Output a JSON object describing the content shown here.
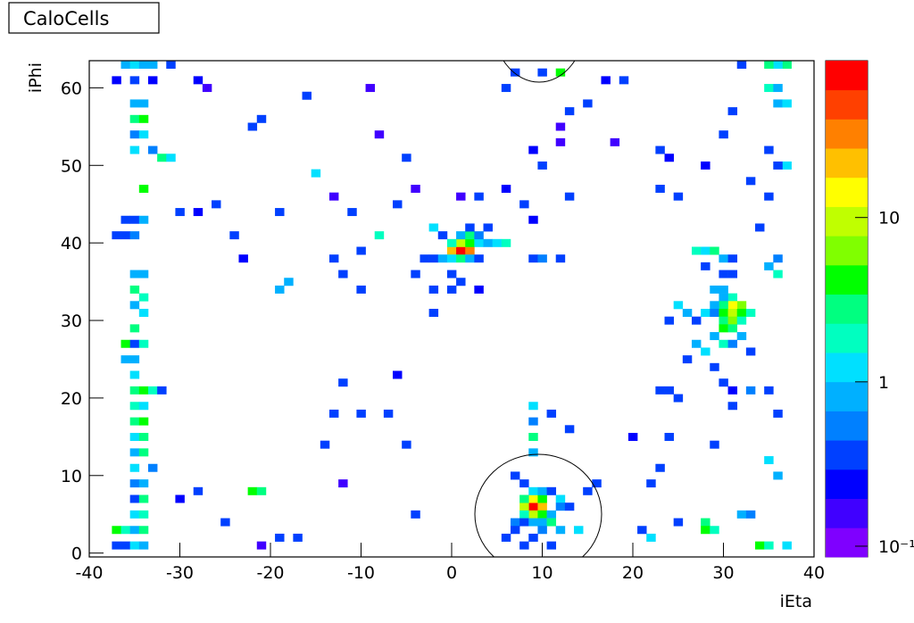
{
  "chart_data": {
    "type": "heatmap",
    "title": "CaloCells",
    "x_label": "iEta",
    "y_label": "iPhi",
    "xlim": [
      -40,
      40
    ],
    "ylim": [
      -0.5,
      63.5
    ],
    "xticks": [
      -40,
      -30,
      -20,
      -10,
      0,
      10,
      20,
      30,
      40
    ],
    "yticks": [
      0,
      10,
      20,
      30,
      40,
      50,
      60
    ],
    "zlim": [
      0.086,
      90
    ],
    "zscale": "log",
    "zticks": [
      {
        "value": 0.1,
        "label": "10⁻¹"
      },
      1,
      10
    ],
    "colormap": [
      "#7f00ff",
      "#4000ff",
      "#0000ff",
      "#0040ff",
      "#0080ff",
      "#00b0ff",
      "#00e0ff",
      "#00ffc0",
      "#00ff80",
      "#00ff00",
      "#80ff00",
      "#c0ff00",
      "#ffff00",
      "#ffc000",
      "#ff8000",
      "#ff4000",
      "#ff0000"
    ],
    "cells": [
      [
        -36,
        63,
        1
      ],
      [
        -35,
        63,
        1.2
      ],
      [
        -34,
        63,
        0.9
      ],
      [
        -33,
        63,
        1
      ],
      [
        -31,
        63,
        0.3
      ],
      [
        -37,
        61,
        0.2
      ],
      [
        -35,
        61,
        0.3
      ],
      [
        -33,
        61,
        0.2
      ],
      [
        -35,
        58,
        1
      ],
      [
        -34,
        58,
        0.8
      ],
      [
        -35,
        56,
        3
      ],
      [
        -34,
        56,
        4
      ],
      [
        -35,
        54,
        0.5
      ],
      [
        -34,
        54,
        1.5
      ],
      [
        -35,
        52,
        1.2
      ],
      [
        -33,
        52,
        0.6
      ],
      [
        -32,
        51,
        3
      ],
      [
        -31,
        51,
        1.4
      ],
      [
        -34,
        47,
        4
      ],
      [
        -36,
        43,
        0.3
      ],
      [
        -35,
        43,
        0.4
      ],
      [
        -34,
        43,
        1
      ],
      [
        -37,
        41,
        0.3
      ],
      [
        -36,
        41,
        0.4
      ],
      [
        -35,
        41,
        0.5
      ],
      [
        -35,
        36,
        1
      ],
      [
        -34,
        36,
        0.7
      ],
      [
        -35,
        34,
        3
      ],
      [
        -34,
        33,
        2
      ],
      [
        -35,
        32,
        0.8
      ],
      [
        -34,
        31,
        1.5
      ],
      [
        -35,
        29,
        3
      ],
      [
        -36,
        27,
        5
      ],
      [
        -35,
        27,
        0.3
      ],
      [
        -34,
        27,
        2
      ],
      [
        -36,
        25,
        1
      ],
      [
        -35,
        25,
        0.8
      ],
      [
        -35,
        23,
        1.5
      ],
      [
        -35,
        21,
        3
      ],
      [
        -34,
        21,
        4
      ],
      [
        -33,
        21,
        2
      ],
      [
        -32,
        21,
        0.3
      ],
      [
        -35,
        19,
        2
      ],
      [
        -34,
        19,
        1.2
      ],
      [
        -35,
        17,
        3
      ],
      [
        -34,
        17,
        4
      ],
      [
        -35,
        15,
        1.5
      ],
      [
        -34,
        15,
        3
      ],
      [
        -35,
        13,
        1
      ],
      [
        -34,
        13,
        3
      ],
      [
        -35,
        11,
        1.5
      ],
      [
        -33,
        11,
        0.5
      ],
      [
        -35,
        9,
        0.5
      ],
      [
        -34,
        9,
        1
      ],
      [
        -35,
        7,
        0.3
      ],
      [
        -34,
        7,
        3
      ],
      [
        -35,
        5,
        1.4
      ],
      [
        -34,
        5,
        2
      ],
      [
        -37,
        3,
        4
      ],
      [
        -36,
        3,
        2
      ],
      [
        -35,
        3,
        1
      ],
      [
        -34,
        3,
        3
      ],
      [
        -37,
        1,
        0.3
      ],
      [
        -36,
        1,
        0.4
      ],
      [
        -35,
        1,
        1.5
      ],
      [
        -34,
        1,
        1
      ],
      [
        -27,
        60,
        0.15
      ],
      [
        -28,
        61,
        0.2
      ],
      [
        -21,
        56,
        0.3
      ],
      [
        -22,
        55,
        0.3
      ],
      [
        -19,
        44,
        0.3
      ],
      [
        -24,
        41,
        0.4
      ],
      [
        -23,
        38,
        0.2
      ],
      [
        -26,
        45,
        0.3
      ],
      [
        -30,
        44,
        0.4
      ],
      [
        -28,
        44,
        0.2
      ],
      [
        -22,
        8,
        4
      ],
      [
        -21,
        8,
        3
      ],
      [
        -28,
        8,
        0.3
      ],
      [
        -30,
        7,
        0.2
      ],
      [
        -25,
        4,
        0.3
      ],
      [
        -21,
        1,
        0.15
      ],
      [
        -19,
        2,
        0.3
      ],
      [
        -17,
        2,
        0.3
      ],
      [
        -16,
        59,
        0.3
      ],
      [
        -15,
        49,
        1.4
      ],
      [
        -13,
        46,
        0.15
      ],
      [
        -13,
        38,
        0.4
      ],
      [
        -12,
        36,
        0.3
      ],
      [
        -10,
        39,
        0.4
      ],
      [
        -11,
        44,
        0.3
      ],
      [
        -18,
        35,
        1
      ],
      [
        -19,
        34,
        0.8
      ],
      [
        -12,
        9,
        0.15
      ],
      [
        -14,
        14,
        0.3
      ],
      [
        -13,
        18,
        0.3
      ],
      [
        -10,
        18,
        0.3
      ],
      [
        -7,
        18,
        0.3
      ],
      [
        -5,
        14,
        0.3
      ],
      [
        -4,
        5,
        0.3
      ],
      [
        -6,
        23,
        0.2
      ],
      [
        -12,
        22,
        0.3
      ],
      [
        -4,
        36,
        0.4
      ],
      [
        -3,
        38,
        0.3
      ],
      [
        -8,
        54,
        0.15
      ],
      [
        -5,
        51,
        0.3
      ],
      [
        -4,
        47,
        0.15
      ],
      [
        -10,
        34,
        0.3
      ],
      [
        -9,
        60,
        0.15
      ],
      [
        -8,
        41,
        2
      ],
      [
        -6,
        45,
        0.3
      ],
      [
        0,
        39,
        20
      ],
      [
        1,
        39,
        70
      ],
      [
        2,
        39,
        30
      ],
      [
        1,
        40,
        10
      ],
      [
        2,
        40,
        5
      ],
      [
        0,
        40,
        2
      ],
      [
        3,
        40,
        1.5
      ],
      [
        1,
        41,
        1
      ],
      [
        2,
        41,
        3
      ],
      [
        3,
        41,
        0.5
      ],
      [
        -2,
        38,
        0.4
      ],
      [
        -1,
        38,
        0.8
      ],
      [
        0,
        38,
        1.5
      ],
      [
        1,
        38,
        3
      ],
      [
        2,
        38,
        1
      ],
      [
        3,
        38,
        0.3
      ],
      [
        4,
        40,
        1
      ],
      [
        5,
        40,
        1.5
      ],
      [
        6,
        40,
        2
      ],
      [
        4,
        42,
        0.3
      ],
      [
        2,
        42,
        0.3
      ],
      [
        -1,
        41,
        0.3
      ],
      [
        0,
        36,
        0.3
      ],
      [
        1,
        35,
        0.3
      ],
      [
        -2,
        34,
        0.4
      ],
      [
        0,
        34,
        0.3
      ],
      [
        3,
        34,
        0.2
      ],
      [
        -2,
        31,
        0.3
      ],
      [
        1,
        46,
        0.15
      ],
      [
        3,
        46,
        0.3
      ],
      [
        6,
        47,
        0.2
      ],
      [
        8,
        45,
        0.3
      ],
      [
        9,
        43,
        0.2
      ],
      [
        -2,
        42,
        1.5
      ],
      [
        9,
        6,
        80
      ],
      [
        10,
        6,
        20
      ],
      [
        8,
        6,
        10
      ],
      [
        9,
        7,
        15
      ],
      [
        10,
        7,
        5
      ],
      [
        8,
        7,
        3
      ],
      [
        9,
        5,
        10
      ],
      [
        10,
        5,
        4
      ],
      [
        8,
        5,
        2
      ],
      [
        11,
        5,
        1
      ],
      [
        7,
        4,
        0.5
      ],
      [
        8,
        4,
        0.4
      ],
      [
        9,
        4,
        1
      ],
      [
        10,
        4,
        0.8
      ],
      [
        11,
        4,
        3
      ],
      [
        9,
        8,
        1.5
      ],
      [
        10,
        8,
        0.8
      ],
      [
        8,
        9,
        0.4
      ],
      [
        11,
        8,
        0.3
      ],
      [
        12,
        7,
        1.5
      ],
      [
        12,
        6,
        0.5
      ],
      [
        13,
        6,
        0.3
      ],
      [
        7,
        3,
        0.3
      ],
      [
        10,
        3,
        0.5
      ],
      [
        12,
        3,
        1
      ],
      [
        14,
        3,
        1.2
      ],
      [
        9,
        2,
        0.3
      ],
      [
        8,
        1,
        0.3
      ],
      [
        11,
        1,
        0.3
      ],
      [
        9,
        15,
        3
      ],
      [
        9,
        13,
        1
      ],
      [
        9,
        17,
        0.5
      ],
      [
        9,
        19,
        1.5
      ],
      [
        11,
        18,
        0.3
      ],
      [
        13,
        16,
        0.3
      ],
      [
        15,
        8,
        0.3
      ],
      [
        16,
        9,
        0.3
      ],
      [
        6,
        2,
        0.3
      ],
      [
        7,
        10,
        0.3
      ],
      [
        7,
        62,
        0.3
      ],
      [
        10,
        62,
        0.3
      ],
      [
        12,
        62,
        4
      ],
      [
        6,
        60,
        0.3
      ],
      [
        13,
        57,
        0.3
      ],
      [
        12,
        55,
        0.15
      ],
      [
        15,
        58,
        0.3
      ],
      [
        17,
        61,
        0.2
      ],
      [
        19,
        61,
        0.3
      ],
      [
        18,
        53,
        0.15
      ],
      [
        12,
        53,
        0.15
      ],
      [
        9,
        52,
        0.2
      ],
      [
        10,
        50,
        0.3
      ],
      [
        13,
        46,
        0.3
      ],
      [
        12,
        38,
        0.3
      ],
      [
        9,
        38,
        0.4
      ],
      [
        10,
        38,
        0.5
      ],
      [
        27,
        39,
        2
      ],
      [
        28,
        39,
        1.5
      ],
      [
        29,
        39,
        3
      ],
      [
        30,
        38,
        1
      ],
      [
        31,
        38,
        0.3
      ],
      [
        28,
        37,
        0.4
      ],
      [
        30,
        36,
        0.3
      ],
      [
        31,
        36,
        0.4
      ],
      [
        29,
        34,
        1
      ],
      [
        30,
        34,
        0.8
      ],
      [
        31,
        33,
        2
      ],
      [
        30,
        33,
        1
      ],
      [
        32,
        32,
        6
      ],
      [
        31,
        32,
        15
      ],
      [
        30,
        32,
        3
      ],
      [
        29,
        32,
        1
      ],
      [
        28,
        31,
        1.5
      ],
      [
        29,
        31,
        0.5
      ],
      [
        30,
        31,
        5
      ],
      [
        31,
        31,
        10
      ],
      [
        32,
        31,
        4
      ],
      [
        33,
        31,
        2
      ],
      [
        30,
        30,
        3
      ],
      [
        31,
        30,
        6
      ],
      [
        32,
        30,
        2
      ],
      [
        27,
        30,
        0.3
      ],
      [
        26,
        31,
        1
      ],
      [
        25,
        32,
        1.5
      ],
      [
        24,
        30,
        0.3
      ],
      [
        30,
        29,
        4
      ],
      [
        31,
        29,
        3
      ],
      [
        29,
        28,
        0.8
      ],
      [
        32,
        28,
        1
      ],
      [
        30,
        27,
        2
      ],
      [
        31,
        27,
        0.5
      ],
      [
        33,
        26,
        0.3
      ],
      [
        28,
        26,
        1.2
      ],
      [
        27,
        27,
        0.8
      ],
      [
        26,
        25,
        0.3
      ],
      [
        29,
        24,
        0.3
      ],
      [
        30,
        22,
        0.3
      ],
      [
        31,
        21,
        0.2
      ],
      [
        33,
        21,
        0.5
      ],
      [
        35,
        21,
        0.4
      ],
      [
        24,
        21,
        0.4
      ],
      [
        23,
        21,
        0.3
      ],
      [
        25,
        20,
        0.3
      ],
      [
        36,
        18,
        0.3
      ],
      [
        35,
        12,
        1.2
      ],
      [
        36,
        10,
        1
      ],
      [
        32,
        5,
        1
      ],
      [
        33,
        5,
        0.5
      ],
      [
        28,
        4,
        3
      ],
      [
        28,
        3,
        5
      ],
      [
        29,
        3,
        2
      ],
      [
        34,
        1,
        4
      ],
      [
        35,
        1,
        2
      ],
      [
        37,
        1,
        1.5
      ],
      [
        25,
        4,
        0.3
      ],
      [
        22,
        2,
        1.4
      ],
      [
        21,
        3,
        0.4
      ],
      [
        22,
        9,
        0.3
      ],
      [
        23,
        11,
        0.3
      ],
      [
        24,
        15,
        0.3
      ],
      [
        20,
        15,
        0.2
      ],
      [
        29,
        14,
        0.3
      ],
      [
        31,
        19,
        0.3
      ],
      [
        36,
        36,
        2
      ],
      [
        35,
        37,
        1
      ],
      [
        36,
        38,
        0.5
      ],
      [
        34,
        42,
        0.3
      ],
      [
        35,
        46,
        0.3
      ],
      [
        37,
        50,
        1.2
      ],
      [
        36,
        50,
        0.3
      ],
      [
        33,
        48,
        0.4
      ],
      [
        35,
        52,
        0.3
      ],
      [
        36,
        58,
        0.8
      ],
      [
        37,
        58,
        1.5
      ],
      [
        35,
        60,
        2
      ],
      [
        36,
        60,
        1
      ],
      [
        37,
        63,
        3
      ],
      [
        36,
        63,
        1.5
      ],
      [
        35,
        63,
        2.5
      ],
      [
        32,
        63,
        0.3
      ],
      [
        31,
        57,
        0.3
      ],
      [
        30,
        54,
        0.3
      ],
      [
        24,
        51,
        0.2
      ],
      [
        23,
        52,
        0.3
      ],
      [
        28,
        50,
        0.2
      ],
      [
        23,
        47,
        0.3
      ],
      [
        25,
        46,
        0.3
      ]
    ]
  }
}
